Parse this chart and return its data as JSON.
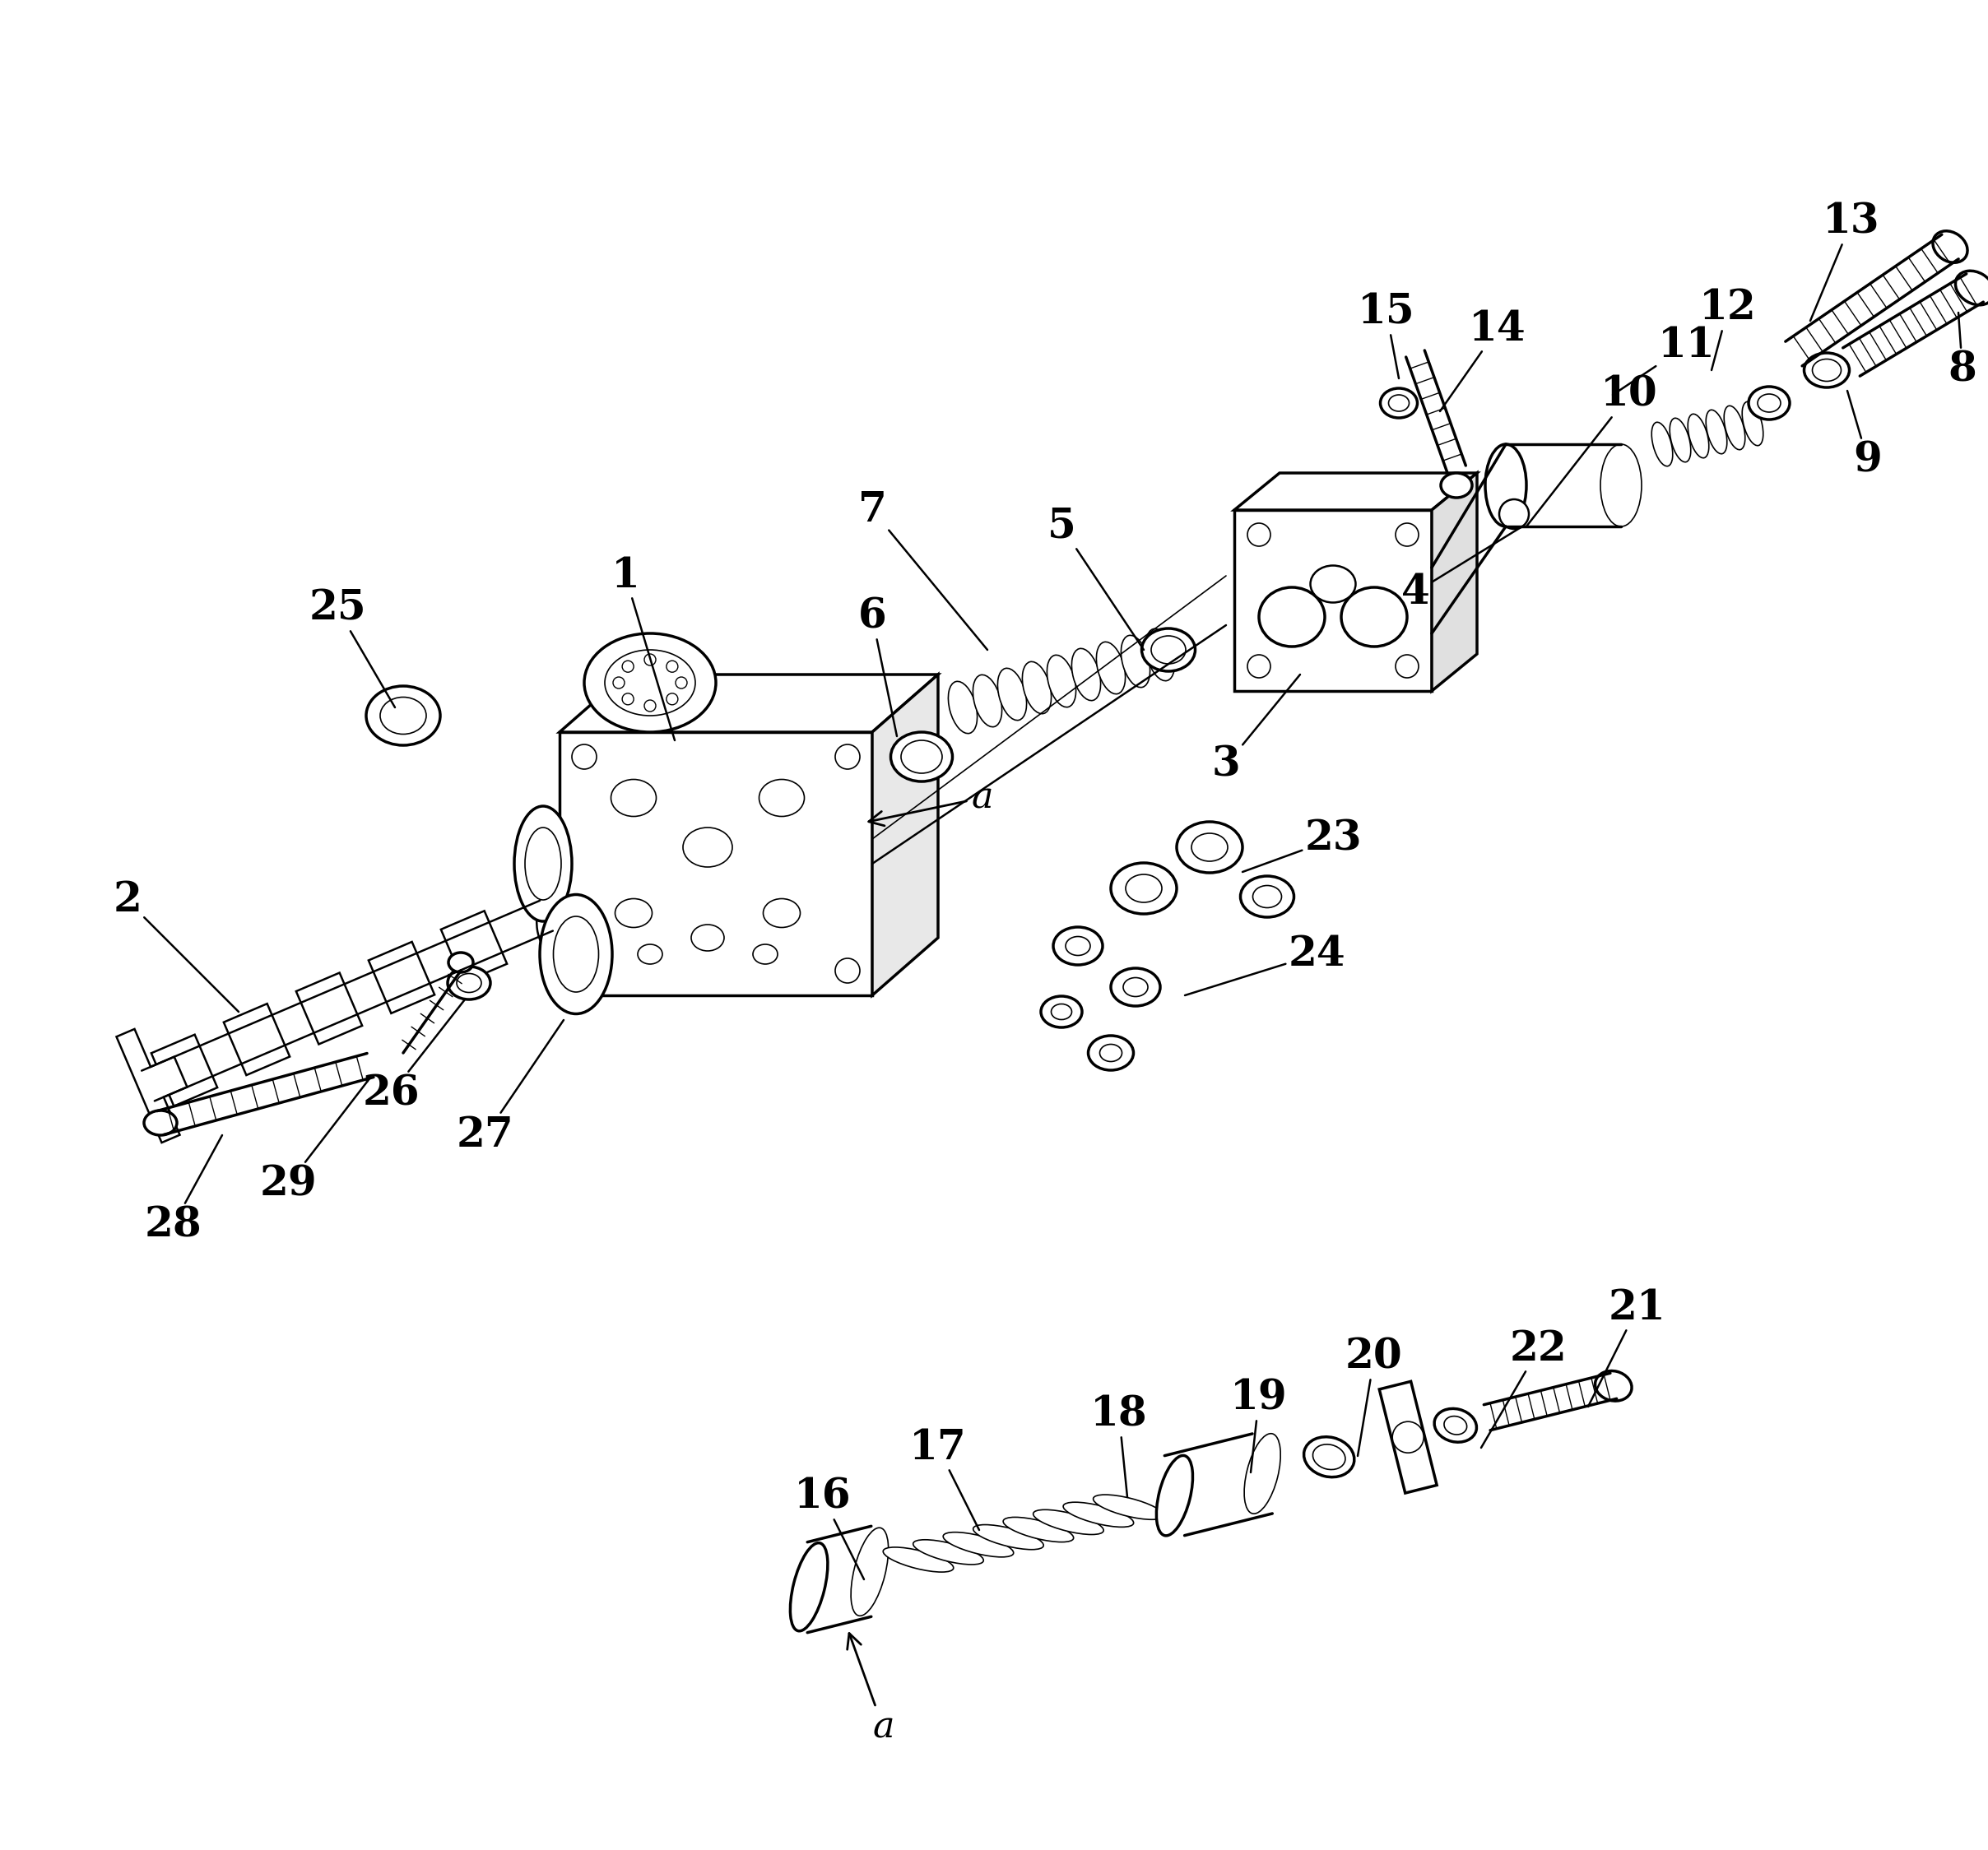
{
  "bg_color": "#ffffff",
  "line_color": "#000000",
  "fig_width": 24.16,
  "fig_height": 22.49
}
